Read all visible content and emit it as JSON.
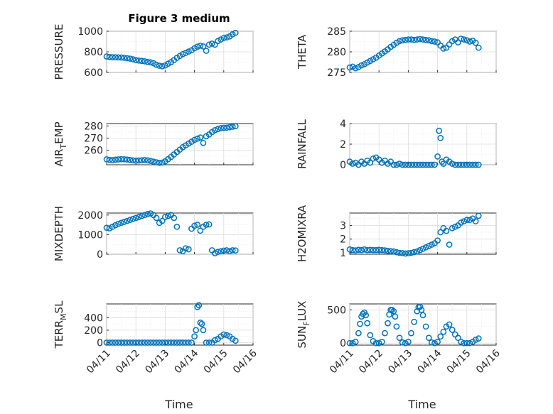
{
  "figure": {
    "title": "Figure 3 medium",
    "series_color": "#0072BD",
    "x_tick_labels": [
      "04/11",
      "04/12",
      "04/13",
      "04/14",
      "04/15",
      "04/16"
    ],
    "x_label": "Time"
  },
  "chart_data": [
    {
      "type": "scatter",
      "ylabel_main": "PRESSURE",
      "ylabel_sub": "",
      "ylabel_tail": "",
      "xlim": [
        0,
        5
      ],
      "ylim": [
        600,
        1000
      ],
      "yticks": [
        600,
        800,
        1000
      ],
      "grid": true,
      "x": [
        0.0,
        0.1,
        0.2,
        0.3,
        0.4,
        0.5,
        0.6,
        0.7,
        0.8,
        0.9,
        1.0,
        1.1,
        1.2,
        1.3,
        1.4,
        1.5,
        1.6,
        1.7,
        1.8,
        1.9,
        2.0,
        2.1,
        2.2,
        2.3,
        2.4,
        2.5,
        2.6,
        2.7,
        2.8,
        2.9,
        3.0,
        3.1,
        3.2,
        3.3,
        3.4,
        3.5,
        3.6,
        3.7,
        3.8,
        3.9,
        4.0,
        4.1,
        4.2,
        4.3,
        4.4
      ],
      "y": [
        755,
        750,
        748,
        747,
        746,
        745,
        742,
        738,
        734,
        728,
        720,
        715,
        712,
        708,
        702,
        698,
        690,
        675,
        665,
        660,
        668,
        685,
        700,
        720,
        742,
        760,
        778,
        790,
        803,
        815,
        835,
        850,
        860,
        852,
        810,
        870,
        880,
        870,
        905,
        920,
        935,
        940,
        950,
        970,
        985
      ]
    },
    {
      "type": "scatter",
      "ylabel_main": "THETA",
      "ylabel_sub": "",
      "ylabel_tail": "",
      "xlim": [
        0,
        5
      ],
      "ylim": [
        275,
        285
      ],
      "yticks": [
        275,
        280,
        285
      ],
      "grid": true,
      "x": [
        0.0,
        0.1,
        0.2,
        0.3,
        0.4,
        0.5,
        0.6,
        0.7,
        0.8,
        0.9,
        1.0,
        1.1,
        1.2,
        1.3,
        1.4,
        1.5,
        1.6,
        1.7,
        1.8,
        1.9,
        2.0,
        2.1,
        2.2,
        2.3,
        2.4,
        2.5,
        2.6,
        2.7,
        2.8,
        2.9,
        3.0,
        3.1,
        3.2,
        3.3,
        3.4,
        3.5,
        3.6,
        3.7,
        3.8,
        3.9,
        4.0,
        4.1,
        4.2,
        4.3,
        4.4
      ],
      "y": [
        276.2,
        276.4,
        276.0,
        276.3,
        276.7,
        277.0,
        277.4,
        277.8,
        278.2,
        278.6,
        279.1,
        279.6,
        280.1,
        280.6,
        281.2,
        281.7,
        282.2,
        282.6,
        282.8,
        282.9,
        283.0,
        283.0,
        282.9,
        283.0,
        283.1,
        283.0,
        282.9,
        282.8,
        282.6,
        282.5,
        282.3,
        281.5,
        280.8,
        281.0,
        281.8,
        282.6,
        283.0,
        282.3,
        283.2,
        283.0,
        282.8,
        282.5,
        282.7,
        282.2,
        281.0
      ]
    },
    {
      "type": "scatter",
      "ylabel_main": "AIR",
      "ylabel_sub": "T",
      "ylabel_tail": "EMP",
      "xlim": [
        0,
        5
      ],
      "ylim": [
        248,
        282
      ],
      "yticks": [
        260,
        270,
        280
      ],
      "grid": true,
      "x": [
        0.0,
        0.1,
        0.2,
        0.3,
        0.4,
        0.5,
        0.6,
        0.7,
        0.8,
        0.9,
        1.0,
        1.1,
        1.2,
        1.3,
        1.4,
        1.5,
        1.6,
        1.7,
        1.8,
        1.9,
        2.0,
        2.1,
        2.2,
        2.3,
        2.4,
        2.5,
        2.6,
        2.7,
        2.8,
        2.9,
        3.0,
        3.1,
        3.2,
        3.3,
        3.4,
        3.5,
        3.6,
        3.7,
        3.8,
        3.9,
        4.0,
        4.1,
        4.2,
        4.3,
        4.4
      ],
      "y": [
        252.5,
        252.0,
        251.8,
        252.2,
        252.4,
        252.6,
        252.5,
        252.3,
        252.0,
        251.6,
        251.4,
        251.5,
        251.7,
        251.9,
        251.6,
        251.2,
        250.6,
        250.0,
        249.6,
        249.8,
        250.8,
        252.6,
        254.5,
        256.5,
        258.5,
        260.5,
        262.5,
        264.0,
        265.5,
        267.0,
        268.5,
        269.5,
        270.5,
        266.0,
        271.5,
        273.0,
        275.0,
        276.5,
        277.5,
        278.2,
        278.5,
        278.6,
        279.0,
        279.4,
        279.8
      ]
    },
    {
      "type": "scatter",
      "ylabel_main": "RAINFALL",
      "ylabel_sub": "",
      "ylabel_tail": "",
      "xlim": [
        0,
        5
      ],
      "ylim": [
        0,
        4
      ],
      "yticks": [
        0,
        2,
        4
      ],
      "grid": true,
      "x": [
        0.0,
        0.1,
        0.2,
        0.3,
        0.4,
        0.5,
        0.6,
        0.7,
        0.8,
        0.9,
        1.0,
        1.1,
        1.2,
        1.3,
        1.4,
        1.5,
        1.6,
        1.7,
        1.8,
        1.9,
        2.0,
        2.1,
        2.2,
        2.3,
        2.4,
        2.5,
        2.6,
        2.7,
        2.8,
        2.9,
        3.0,
        3.05,
        3.1,
        3.15,
        3.2,
        3.3,
        3.4,
        3.5,
        3.6,
        3.7,
        3.8,
        3.9,
        4.0,
        4.1,
        4.2,
        4.3,
        4.4
      ],
      "y": [
        0.3,
        0.1,
        0.2,
        0.0,
        0.3,
        0.1,
        0.4,
        0.2,
        0.6,
        0.7,
        0.5,
        0.2,
        0.4,
        0.1,
        0.3,
        0.0,
        0.0,
        0.1,
        0.0,
        0.0,
        0.0,
        0.0,
        0.0,
        0.0,
        0.0,
        0.0,
        0.0,
        0.0,
        0.0,
        0.0,
        0.8,
        3.3,
        2.6,
        0.3,
        0.1,
        0.5,
        0.3,
        0.1,
        0.0,
        0.0,
        0.0,
        0.0,
        0.0,
        0.0,
        0.0,
        0.0,
        0.0
      ]
    },
    {
      "type": "scatter",
      "ylabel_main": "MIXDEPTH",
      "ylabel_sub": "",
      "ylabel_tail": "",
      "xlim": [
        0,
        5
      ],
      "ylim": [
        0,
        2100
      ],
      "yticks": [
        0,
        1000,
        2000
      ],
      "grid": true,
      "x": [
        0.0,
        0.1,
        0.2,
        0.3,
        0.4,
        0.5,
        0.6,
        0.7,
        0.8,
        0.9,
        1.0,
        1.1,
        1.2,
        1.3,
        1.4,
        1.5,
        1.6,
        1.7,
        1.8,
        1.9,
        2.0,
        2.1,
        2.2,
        2.3,
        2.4,
        2.5,
        2.6,
        2.7,
        2.8,
        2.9,
        3.0,
        3.1,
        3.2,
        3.3,
        3.4,
        3.5,
        3.6,
        3.7,
        3.8,
        3.9,
        4.0,
        4.1,
        4.2,
        4.3,
        4.4
      ],
      "y": [
        1350,
        1320,
        1400,
        1480,
        1550,
        1600,
        1650,
        1700,
        1750,
        1800,
        1850,
        1900,
        1950,
        2000,
        2050,
        2080,
        2000,
        1850,
        1600,
        1700,
        1900,
        1950,
        2000,
        1850,
        1400,
        200,
        150,
        300,
        250,
        1300,
        1450,
        1500,
        1200,
        1400,
        1500,
        1520,
        200,
        50,
        120,
        150,
        180,
        200,
        150,
        200,
        190
      ]
    },
    {
      "type": "scatter",
      "ylabel_main": "H2OMIXRA",
      "ylabel_sub": "",
      "ylabel_tail": "",
      "xlim": [
        0,
        5
      ],
      "ylim": [
        0.9,
        3.9
      ],
      "yticks": [
        1,
        2,
        3
      ],
      "grid": true,
      "x": [
        0.0,
        0.1,
        0.2,
        0.3,
        0.4,
        0.5,
        0.6,
        0.7,
        0.8,
        0.9,
        1.0,
        1.1,
        1.2,
        1.3,
        1.4,
        1.5,
        1.6,
        1.7,
        1.8,
        1.9,
        2.0,
        2.1,
        2.2,
        2.3,
        2.4,
        2.5,
        2.6,
        2.7,
        2.8,
        2.9,
        3.0,
        3.1,
        3.2,
        3.3,
        3.4,
        3.5,
        3.6,
        3.7,
        3.8,
        3.9,
        4.0,
        4.1,
        4.2,
        4.3,
        4.4
      ],
      "y": [
        1.25,
        1.2,
        1.18,
        1.22,
        1.2,
        1.25,
        1.2,
        1.22,
        1.2,
        1.2,
        1.22,
        1.2,
        1.18,
        1.15,
        1.12,
        1.1,
        1.05,
        1.0,
        0.98,
        0.95,
        0.97,
        1.0,
        1.05,
        1.1,
        1.2,
        1.3,
        1.4,
        1.5,
        1.6,
        1.7,
        1.9,
        2.5,
        2.8,
        2.6,
        1.6,
        2.8,
        2.9,
        3.0,
        3.2,
        3.3,
        3.4,
        3.4,
        3.5,
        3.3,
        3.7
      ]
    },
    {
      "type": "scatter",
      "ylabel_main": "TERR",
      "ylabel_sub": "M",
      "ylabel_tail": "SL",
      "xlim": [
        0,
        5
      ],
      "ylim": [
        -40,
        620
      ],
      "yticks": [
        0,
        200,
        400
      ],
      "grid": true,
      "x": [
        0.0,
        0.1,
        0.2,
        0.3,
        0.4,
        0.5,
        0.6,
        0.7,
        0.8,
        0.9,
        1.0,
        1.1,
        1.2,
        1.3,
        1.4,
        1.5,
        1.6,
        1.7,
        1.8,
        1.9,
        2.0,
        2.1,
        2.2,
        2.3,
        2.4,
        2.5,
        2.6,
        2.7,
        2.8,
        2.9,
        3.0,
        3.05,
        3.1,
        3.15,
        3.2,
        3.25,
        3.3,
        3.4,
        3.5,
        3.6,
        3.7,
        3.8,
        3.9,
        4.0,
        4.1,
        4.2,
        4.3,
        4.4
      ],
      "y": [
        0,
        0,
        0,
        0,
        0,
        0,
        0,
        0,
        0,
        0,
        0,
        0,
        0,
        0,
        0,
        0,
        0,
        0,
        0,
        0,
        0,
        0,
        0,
        0,
        0,
        0,
        0,
        0,
        0,
        0,
        100,
        200,
        570,
        600,
        320,
        300,
        200,
        0,
        0,
        0,
        40,
        60,
        100,
        130,
        120,
        100,
        60,
        30
      ]
    },
    {
      "type": "scatter",
      "ylabel_main": "SUN",
      "ylabel_sub": "F",
      "ylabel_tail": "LUX",
      "xlim": [
        0,
        5
      ],
      "ylim": [
        -30,
        590
      ],
      "yticks": [
        0,
        500
      ],
      "grid": true,
      "x": [
        0.0,
        0.1,
        0.2,
        0.3,
        0.35,
        0.4,
        0.45,
        0.5,
        0.55,
        0.6,
        0.7,
        0.8,
        0.9,
        1.0,
        1.1,
        1.2,
        1.3,
        1.35,
        1.4,
        1.45,
        1.5,
        1.55,
        1.6,
        1.7,
        1.8,
        1.9,
        2.0,
        2.1,
        2.2,
        2.3,
        2.35,
        2.4,
        2.45,
        2.5,
        2.6,
        2.7,
        2.8,
        2.9,
        3.0,
        3.1,
        3.2,
        3.3,
        3.4,
        3.5,
        3.6,
        3.7,
        3.8,
        3.9,
        4.0,
        4.1,
        4.2,
        4.3,
        4.4
      ],
      "y": [
        0,
        0,
        20,
        150,
        290,
        400,
        440,
        460,
        420,
        300,
        120,
        30,
        0,
        0,
        20,
        150,
        300,
        430,
        500,
        500,
        480,
        400,
        250,
        80,
        10,
        0,
        20,
        150,
        320,
        480,
        540,
        550,
        500,
        420,
        250,
        80,
        10,
        0,
        20,
        100,
        170,
        250,
        280,
        200,
        130,
        80,
        20,
        0,
        0,
        0,
        20,
        50,
        70
      ]
    }
  ]
}
